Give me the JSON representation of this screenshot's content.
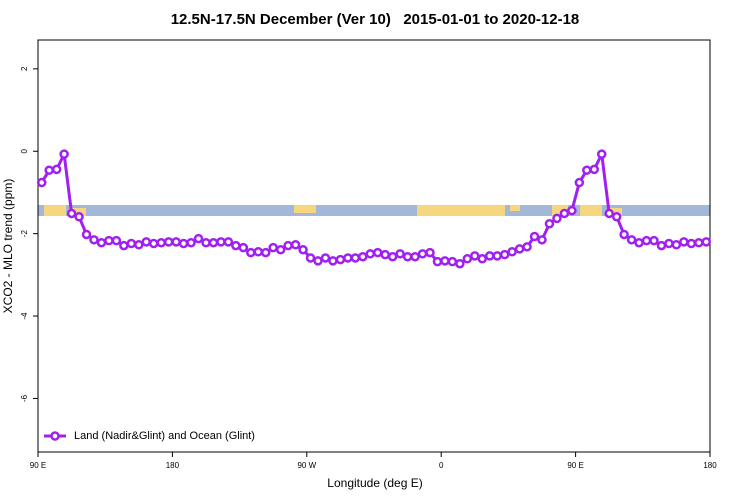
{
  "chart_data": {
    "type": "line",
    "title": "12.5N-17.5N December (Ver 10)   2015-01-01 to 2020-12-18",
    "x_label": "Longitude (deg E)",
    "y_label": "XCO2 - MLO trend (ppm)",
    "xlim": [
      90,
      540
    ],
    "ylim": [
      -7.3,
      2.7
    ],
    "xticks": [
      {
        "value": 90,
        "label": "90 E"
      },
      180,
      {
        "value": 270,
        "label": "90 W"
      },
      {
        "value": 360,
        "label": "0"
      },
      {
        "value": 450,
        "label": "90 E"
      },
      {
        "value": 540,
        "label": "180"
      }
    ],
    "yticks": [
      2,
      0,
      -2,
      -4,
      -6
    ],
    "legend": "bottom-left",
    "x": [
      92.5,
      97.5,
      102.5,
      107.5,
      112.5,
      117.5,
      122.5,
      127.5,
      132.5,
      137.5,
      142.5,
      147.5,
      152.5,
      157.5,
      162.5,
      167.5,
      172.5,
      177.5,
      182.5,
      187.5,
      192.5,
      197.5,
      202.5,
      207.5,
      212.5,
      217.5,
      222.5,
      227.5,
      232.5,
      237.5,
      242.5,
      247.5,
      252.5,
      257.5,
      262.5,
      267.5,
      272.5,
      277.5,
      282.5,
      287.5,
      292.5,
      297.5,
      302.5,
      307.5,
      312.5,
      317.5,
      322.5,
      327.5,
      332.5,
      337.5,
      342.5,
      347.5,
      352.5,
      357.5,
      362.5,
      367.5,
      372.5,
      377.5,
      382.5,
      387.5,
      392.5,
      397.5,
      402.5,
      407.5,
      412.5,
      417.5,
      422.5,
      427.5,
      432.5,
      437.5,
      442.5,
      447.5,
      452.5,
      457.5,
      462.5,
      467.5,
      472.5,
      477.5,
      482.5,
      487.5,
      492.5,
      497.5,
      502.5,
      507.5,
      512.5,
      517.5,
      522.5,
      527.5,
      532.5,
      537.5
    ],
    "series": [
      {
        "name": "Land (Nadir&Glint) and Ocean (Glint)",
        "color": "#a020f0",
        "values": [
          -0.76,
          -0.46,
          -0.44,
          -0.07,
          -1.51,
          -1.59,
          -2.02,
          -2.15,
          -2.22,
          -2.17,
          -2.17,
          -2.29,
          -2.24,
          -2.27,
          -2.2,
          -2.24,
          -2.22,
          -2.2,
          -2.2,
          -2.24,
          -2.22,
          -2.12,
          -2.22,
          -2.22,
          -2.2,
          -2.2,
          -2.29,
          -2.34,
          -2.46,
          -2.44,
          -2.46,
          -2.34,
          -2.39,
          -2.29,
          -2.27,
          -2.39,
          -2.59,
          -2.66,
          -2.59,
          -2.66,
          -2.63,
          -2.59,
          -2.59,
          -2.56,
          -2.49,
          -2.46,
          -2.51,
          -2.56,
          -2.49,
          -2.56,
          -2.56,
          -2.49,
          -2.46,
          -2.68,
          -2.66,
          -2.68,
          -2.73,
          -2.61,
          -2.54,
          -2.61,
          -2.54,
          -2.54,
          -2.51,
          -2.44,
          -2.37,
          -2.32,
          -2.07,
          -2.15,
          -1.76,
          -1.63,
          -1.51,
          -1.44,
          -0.76,
          -0.46,
          -0.44,
          -0.07,
          -1.51,
          -1.59,
          -2.02,
          -2.15,
          -2.22,
          -2.17,
          -2.17,
          -2.29,
          -2.24,
          -2.27,
          -2.2,
          -2.24,
          -2.22,
          -2.2
        ]
      }
    ]
  }
}
